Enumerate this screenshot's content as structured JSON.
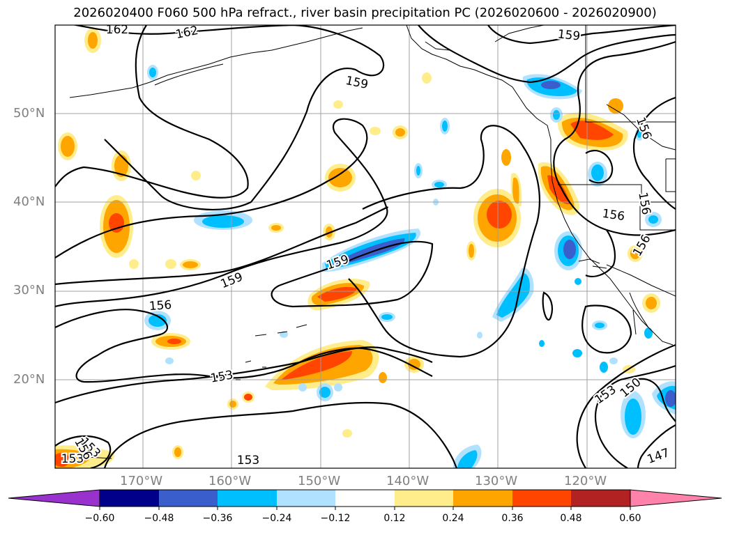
{
  "title": "2026020400 F060 500 hPa refract., river basin precipitation PC (2026020600 - 2026020900)",
  "lat_labels": [
    "50°N",
    "40°N",
    "30°N",
    "20°N"
  ],
  "lon_labels": [
    "170°W",
    "160°W",
    "150°W",
    "140°W",
    "130°W",
    "120°W"
  ],
  "contour_labels": [
    "162",
    "162",
    "159",
    "159",
    "159",
    "159",
    "156",
    "156",
    "156",
    "156",
    "156",
    "153",
    "153",
    "153",
    "153",
    "150",
    "147",
    "153",
    "156"
  ],
  "colorbar": {
    "ticks": [
      "−0.60",
      "−0.48",
      "−0.36",
      "−0.24",
      "−0.12",
      "0.12",
      "0.24",
      "0.36",
      "0.48",
      "0.60"
    ],
    "colors": [
      "#9932cc",
      "#00008b",
      "#3a5fcd",
      "#00bfff",
      "#b0e2ff",
      "#ffffff",
      "#ffec8b",
      "#ffa500",
      "#ff4500",
      "#b22222",
      "#ff82ab"
    ]
  },
  "colors": {
    "neg_strong": "#3a5fcd",
    "neg_mid": "#00bfff",
    "neg_weak": "#b0e2ff",
    "pos_weak": "#ffec8b",
    "pos_mid": "#ffa500",
    "pos_strong": "#ff4500"
  }
}
